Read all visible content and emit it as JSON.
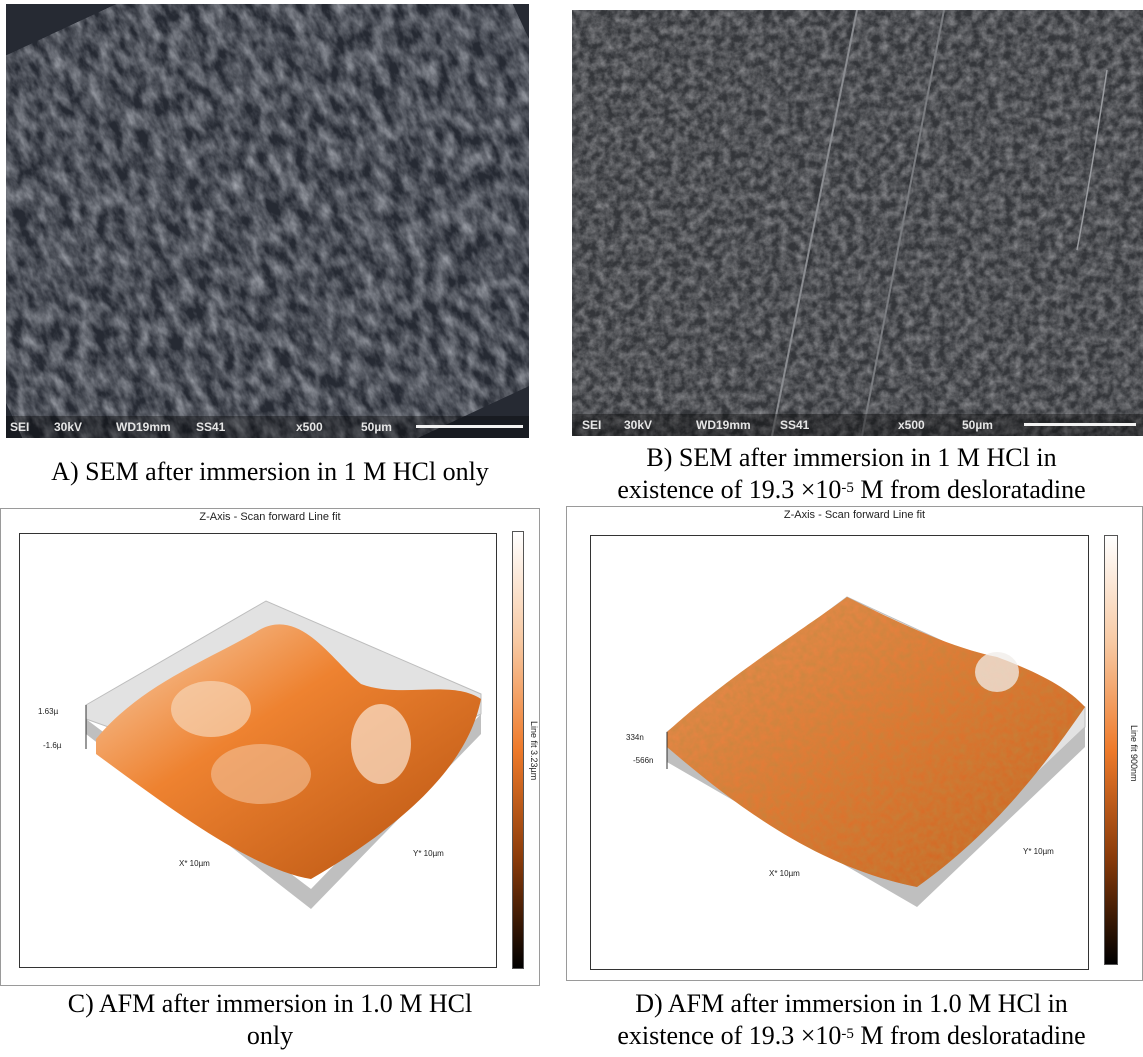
{
  "panels": {
    "a": {
      "sem_bar": {
        "mode": "SEI",
        "voltage": "30kV",
        "wd": "WD19mm",
        "sample": "SS41",
        "mag": "x500",
        "scale": "50µm"
      },
      "caption": "A) SEM after immersion in 1 M HCl only"
    },
    "b": {
      "sem_bar": {
        "mode": "SEI",
        "voltage": "30kV",
        "wd": "WD19mm",
        "sample": "SS41",
        "mag": "x500",
        "scale": "50µm"
      },
      "caption_line1": "B) SEM after immersion in 1 M HCl in",
      "caption_line2_pre": "existence of 19.3 ×10",
      "caption_line2_sup": "-5",
      "caption_line2_post": " M from desloratadine"
    },
    "c": {
      "title": "Z-Axis - Scan forward   Line fit",
      "z_max": "1.63µ",
      "z_min": "-1.6µ",
      "x_axis": "X* 10µm",
      "y_axis": "Y* 10µm",
      "colorbar_label": "Line fit 3.23µm",
      "caption_line1": "C) AFM after immersion in 1.0 M HCl",
      "caption_line2": "only"
    },
    "d": {
      "title": "Z-Axis - Scan forward   Line fit",
      "z_max": "334n",
      "z_min": "-566n",
      "x_axis": "X* 10µm",
      "y_axis": "Y* 10µm",
      "colorbar_label": "Line fit 900nm",
      "caption_line1": "D) AFM after immersion in 1.0 M HCl in",
      "caption_line2_pre": "existence of 19.3 ×10",
      "caption_line2_sup": "-5",
      "caption_line2_post": " M from desloratadine"
    }
  },
  "colors": {
    "sem_bg": "#23262e",
    "afm_surface": "#e8731f",
    "afm_highlight": "#f6c9a0"
  }
}
